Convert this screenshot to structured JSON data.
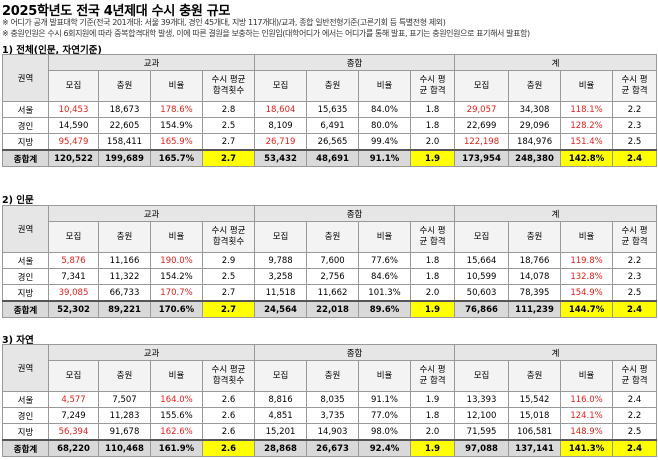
{
  "title": "2025학년도 전국 4년제대 수시 충원 규모",
  "notes": [
    "※ 어디가 공개 발표대학 기준(전국 201개대: 서울 39개대, 경인 45개대, 지방 117개대)/교과, 종합 일반전형기준(고른기회 등 특별전형 제외)",
    "※ 충원인원은 수시 6회지원에 따라 중복합격대학 발생, 이에 따른 결원을 보충하는 인원임(대학어디가 에서는 어디가를 통해 발표, 표기는 충원인원으로 표기해서 발표함)"
  ],
  "groups": [
    "교과",
    "종합",
    "계"
  ],
  "region_header": "권역",
  "col_headers": [
    "모집",
    "충원",
    "비율",
    "수시 평균\n합격횟수",
    "모집",
    "충원",
    "비율",
    "수시 평\n균 합격",
    "모집",
    "충원",
    "비율",
    "수시 평\n균 합격"
  ],
  "sections": [
    {
      "label": "1) 전체(인문, 자연기준)",
      "rows": [
        {
          "region": "서울",
          "cells": [
            "10,453",
            "18,673",
            "178.6%",
            "2.8",
            "18,604",
            "15,635",
            "84.0%",
            "1.8",
            "29,057",
            "34,308",
            "118.1%",
            "2.2"
          ],
          "red": [
            0,
            2,
            4,
            8,
            10
          ]
        },
        {
          "region": "경인",
          "cells": [
            "14,590",
            "22,605",
            "154.9%",
            "2.5",
            "8,109",
            "6,491",
            "80.0%",
            "1.8",
            "22,699",
            "29,096",
            "128.2%",
            "2.3"
          ],
          "red": [
            10
          ]
        },
        {
          "region": "지방",
          "cells": [
            "95,479",
            "158,411",
            "165.9%",
            "2.7",
            "26,719",
            "26,565",
            "99.4%",
            "2.0",
            "122,198",
            "184,976",
            "151.4%",
            "2.5"
          ],
          "red": [
            0,
            2,
            4,
            8,
            10
          ]
        },
        {
          "region": "종합계",
          "cells": [
            "120,522",
            "199,689",
            "165.7%",
            "2.7",
            "53,432",
            "48,691",
            "91.1%",
            "1.9",
            "173,954",
            "248,380",
            "142.8%",
            "2.4"
          ],
          "red": [],
          "total": true
        }
      ]
    },
    {
      "label": "2) 인문",
      "rows": [
        {
          "region": "서울",
          "cells": [
            "5,876",
            "11,166",
            "190.0%",
            "2.9",
            "9,788",
            "7,600",
            "77.6%",
            "1.8",
            "15,664",
            "18,766",
            "119.8%",
            "2.2"
          ],
          "red": [
            0,
            2,
            10
          ]
        },
        {
          "region": "경인",
          "cells": [
            "7,341",
            "11,322",
            "154.2%",
            "2.5",
            "3,258",
            "2,756",
            "84.6%",
            "1.8",
            "10,599",
            "14,078",
            "132.8%",
            "2.3"
          ],
          "red": [
            10
          ]
        },
        {
          "region": "지방",
          "cells": [
            "39,085",
            "66,733",
            "170.7%",
            "2.7",
            "11,518",
            "11,662",
            "101.3%",
            "2.0",
            "50,603",
            "78,395",
            "154.9%",
            "2.5"
          ],
          "red": [
            0,
            2,
            10
          ]
        },
        {
          "region": "종합계",
          "cells": [
            "52,302",
            "89,221",
            "170.6%",
            "2.7",
            "24,564",
            "22,018",
            "89.6%",
            "1.9",
            "76,866",
            "111,239",
            "144.7%",
            "2.4"
          ],
          "red": [],
          "total": true
        }
      ]
    },
    {
      "label": "3) 자연",
      "rows": [
        {
          "region": "서울",
          "cells": [
            "4,577",
            "7,507",
            "164.0%",
            "2.6",
            "8,816",
            "8,035",
            "91.1%",
            "1.9",
            "13,393",
            "15,542",
            "116.0%",
            "2.4"
          ],
          "red": [
            0,
            2,
            10
          ]
        },
        {
          "region": "경인",
          "cells": [
            "7,249",
            "11,283",
            "155.6%",
            "2.6",
            "4,851",
            "3,735",
            "77.0%",
            "1.8",
            "12,100",
            "15,018",
            "124.1%",
            "2.2"
          ],
          "red": [
            10
          ]
        },
        {
          "region": "지방",
          "cells": [
            "56,394",
            "91,678",
            "162.6%",
            "2.6",
            "15,201",
            "14,903",
            "98.0%",
            "2.0",
            "71,595",
            "106,581",
            "148.9%",
            "2.5"
          ],
          "red": [
            0,
            2,
            10
          ]
        },
        {
          "region": "종합계",
          "cells": [
            "68,220",
            "110,468",
            "161.9%",
            "2.6",
            "28,868",
            "26,673",
            "92.4%",
            "1.9",
            "97,088",
            "137,141",
            "141.3%",
            "2.4"
          ],
          "red": [],
          "total": true
        }
      ]
    }
  ]
}
